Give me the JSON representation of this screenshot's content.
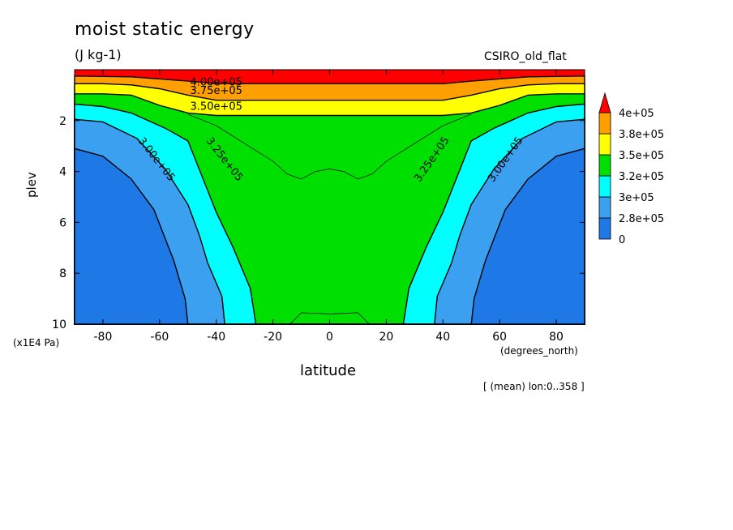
{
  "figure": {
    "title": "moist static energy",
    "units": "(J kg-1)",
    "model_label": "CSIRO_old_flat",
    "xlabel": "latitude",
    "ylabel": "plev",
    "y_unit_label": "(x1E4 Pa)",
    "x_unit_label": "(degrees_north)",
    "footnote": "[ (mean) lon:0..358 ]"
  },
  "chart_data": {
    "type": "heatmap",
    "subtype": "filled-contour",
    "title": "moist static energy",
    "xlabel": "latitude",
    "ylabel": "plev",
    "xlim": [
      -90,
      90
    ],
    "ylim": [
      10,
      0
    ],
    "x_ticks": [
      -80,
      -60,
      -40,
      -20,
      0,
      20,
      40,
      60,
      80
    ],
    "y_ticks": [
      2,
      4,
      6,
      8,
      10
    ],
    "legend": {
      "placement": "right",
      "levels": [
        "0",
        "2.8e+05",
        "3e+05",
        "3.2e+05",
        "3.5e+05",
        "3.8e+05",
        "4e+05"
      ],
      "colors": [
        "#1e78e6",
        "#3ca0f0",
        "#00ffff",
        "#00e000",
        "#ffff00",
        "#ffa000",
        "#ff0000"
      ]
    },
    "contour_labels": [
      "4.00e+05",
      "3.75e+05",
      "3.50e+05",
      "3.25e+05",
      "3.00e+05"
    ],
    "bands": [
      {
        "name": "lt-2.8e5",
        "color": "#1e78e6",
        "points": [
          [
            -90,
            3.1
          ],
          [
            -80,
            3.4
          ],
          [
            -70,
            4.3
          ],
          [
            -62,
            5.5
          ],
          [
            -55,
            7.5
          ],
          [
            -51,
            9.0
          ],
          [
            -50,
            10
          ],
          [
            50,
            10
          ],
          [
            51,
            9.0
          ],
          [
            55,
            7.5
          ],
          [
            62,
            5.5
          ],
          [
            70,
            4.3
          ],
          [
            80,
            3.4
          ],
          [
            90,
            3.1
          ],
          [
            90,
            10
          ],
          [
            -90,
            10
          ]
        ]
      },
      {
        "name": "2.8e5-3e5",
        "color": "#3ca0f0",
        "points": [
          [
            -90,
            1.95
          ],
          [
            -80,
            2.05
          ],
          [
            -68,
            2.7
          ],
          [
            -58,
            3.9
          ],
          [
            -50,
            5.3
          ],
          [
            -46,
            6.5
          ],
          [
            -43,
            7.6
          ],
          [
            -38,
            8.9
          ],
          [
            -37,
            10
          ],
          [
            37,
            10
          ],
          [
            38,
            8.9
          ],
          [
            43,
            7.6
          ],
          [
            46,
            6.5
          ],
          [
            50,
            5.3
          ],
          [
            58,
            3.9
          ],
          [
            68,
            2.7
          ],
          [
            80,
            2.05
          ],
          [
            90,
            1.95
          ],
          [
            90,
            10
          ],
          [
            -90,
            10
          ]
        ]
      },
      {
        "name": "3e5-3.2e5",
        "color": "#00ffff",
        "points": [
          [
            -90,
            1.35
          ],
          [
            -80,
            1.45
          ],
          [
            -70,
            1.7
          ],
          [
            -58,
            2.3
          ],
          [
            -50,
            2.8
          ],
          [
            -45,
            4.2
          ],
          [
            -40,
            5.6
          ],
          [
            -34,
            7.0
          ],
          [
            -28,
            8.6
          ],
          [
            -26,
            10
          ],
          [
            26,
            10
          ],
          [
            28,
            8.6
          ],
          [
            34,
            7.0
          ],
          [
            40,
            5.6
          ],
          [
            45,
            4.2
          ],
          [
            50,
            2.8
          ],
          [
            58,
            2.3
          ],
          [
            70,
            1.7
          ],
          [
            80,
            1.45
          ],
          [
            90,
            1.35
          ],
          [
            90,
            10
          ],
          [
            -90,
            10
          ]
        ]
      },
      {
        "name": "3.2e5-3.5e5",
        "color": "#00e000",
        "points": [
          [
            -90,
            0.95
          ],
          [
            -80,
            0.95
          ],
          [
            -70,
            1.0
          ],
          [
            -60,
            1.4
          ],
          [
            -50,
            1.7
          ],
          [
            -40,
            1.8
          ],
          [
            40,
            1.8
          ],
          [
            50,
            1.7
          ],
          [
            60,
            1.4
          ],
          [
            70,
            1.0
          ],
          [
            80,
            0.95
          ],
          [
            90,
            0.95
          ],
          [
            90,
            10
          ],
          [
            -90,
            10
          ]
        ]
      },
      {
        "name": "3.5e5-3.8e5",
        "color": "#ffff00",
        "points": [
          [
            -90,
            0.55
          ],
          [
            -80,
            0.55
          ],
          [
            -70,
            0.6
          ],
          [
            -60,
            0.75
          ],
          [
            -50,
            1.0
          ],
          [
            -40,
            1.2
          ],
          [
            40,
            1.2
          ],
          [
            50,
            1.0
          ],
          [
            60,
            0.75
          ],
          [
            70,
            0.6
          ],
          [
            80,
            0.55
          ],
          [
            90,
            0.55
          ],
          [
            90,
            10
          ],
          [
            -90,
            10
          ]
        ]
      },
      {
        "name": "3.8e5-4e5",
        "color": "#ffa000",
        "points": [
          [
            -90,
            0.25
          ],
          [
            -70,
            0.28
          ],
          [
            -50,
            0.45
          ],
          [
            -40,
            0.55
          ],
          [
            40,
            0.55
          ],
          [
            50,
            0.45
          ],
          [
            70,
            0.28
          ],
          [
            90,
            0.25
          ],
          [
            90,
            10
          ],
          [
            -90,
            10
          ]
        ]
      }
    ]
  }
}
